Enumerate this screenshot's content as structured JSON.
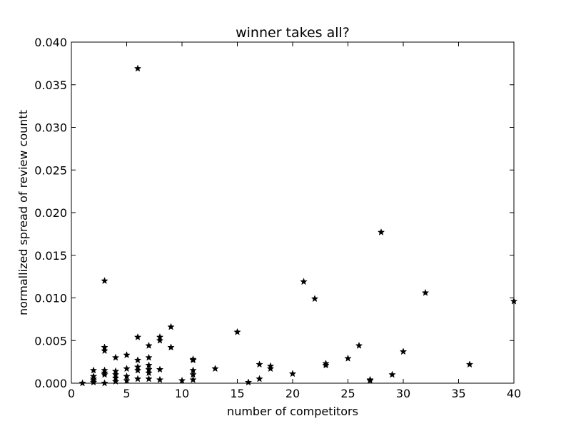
{
  "chart_data": {
    "type": "scatter",
    "title": "winner takes all?",
    "xlabel": "number of competitors",
    "ylabel": "normallized spread of review countt",
    "xlim": [
      0,
      40
    ],
    "ylim": [
      0,
      0.04
    ],
    "xticks": [
      "0",
      "5",
      "10",
      "15",
      "20",
      "25",
      "30",
      "35",
      "40"
    ],
    "yticks": [
      "0.000",
      "0.005",
      "0.010",
      "0.015",
      "0.020",
      "0.025",
      "0.030",
      "0.035",
      "0.040"
    ],
    "grid": false,
    "marker": "star",
    "marker_color": "#000000",
    "points": [
      {
        "x": 1,
        "y": 0.0
      },
      {
        "x": 2,
        "y": 0.0015
      },
      {
        "x": 2,
        "y": 0.0008
      },
      {
        "x": 2,
        "y": 0.0005
      },
      {
        "x": 2,
        "y": 0.0003
      },
      {
        "x": 2,
        "y": 0.0001
      },
      {
        "x": 3,
        "y": 0.012
      },
      {
        "x": 3,
        "y": 0.0042
      },
      {
        "x": 3,
        "y": 0.0038
      },
      {
        "x": 3,
        "y": 0.0015
      },
      {
        "x": 3,
        "y": 0.0012
      },
      {
        "x": 3,
        "y": 0.001
      },
      {
        "x": 3,
        "y": 0.0
      },
      {
        "x": 4,
        "y": 0.003
      },
      {
        "x": 4,
        "y": 0.0014
      },
      {
        "x": 4,
        "y": 0.001
      },
      {
        "x": 4,
        "y": 0.0006
      },
      {
        "x": 4,
        "y": 0.0002
      },
      {
        "x": 5,
        "y": 0.0033
      },
      {
        "x": 5,
        "y": 0.0017
      },
      {
        "x": 5,
        "y": 0.0008
      },
      {
        "x": 5,
        "y": 0.0003
      },
      {
        "x": 6,
        "y": 0.0369
      },
      {
        "x": 6,
        "y": 0.0054
      },
      {
        "x": 6,
        "y": 0.0027
      },
      {
        "x": 6,
        "y": 0.0019
      },
      {
        "x": 6,
        "y": 0.0015
      },
      {
        "x": 6,
        "y": 0.0005
      },
      {
        "x": 7,
        "y": 0.0044
      },
      {
        "x": 7,
        "y": 0.003
      },
      {
        "x": 7,
        "y": 0.0021
      },
      {
        "x": 7,
        "y": 0.0016
      },
      {
        "x": 7,
        "y": 0.0012
      },
      {
        "x": 7,
        "y": 0.0005
      },
      {
        "x": 8,
        "y": 0.0054
      },
      {
        "x": 8,
        "y": 0.005
      },
      {
        "x": 8,
        "y": 0.0016
      },
      {
        "x": 8,
        "y": 0.0004
      },
      {
        "x": 9,
        "y": 0.0066
      },
      {
        "x": 9,
        "y": 0.0042
      },
      {
        "x": 10,
        "y": 0.0003
      },
      {
        "x": 11,
        "y": 0.0028
      },
      {
        "x": 11,
        "y": 0.0027
      },
      {
        "x": 11,
        "y": 0.0015
      },
      {
        "x": 11,
        "y": 0.001
      },
      {
        "x": 11,
        "y": 0.0004
      },
      {
        "x": 13,
        "y": 0.0017
      },
      {
        "x": 15,
        "y": 0.006
      },
      {
        "x": 16,
        "y": 0.0001
      },
      {
        "x": 17,
        "y": 0.0022
      },
      {
        "x": 17,
        "y": 0.0005
      },
      {
        "x": 18,
        "y": 0.002
      },
      {
        "x": 18,
        "y": 0.0017
      },
      {
        "x": 20,
        "y": 0.0011
      },
      {
        "x": 21,
        "y": 0.0119
      },
      {
        "x": 22,
        "y": 0.0099
      },
      {
        "x": 23,
        "y": 0.0023
      },
      {
        "x": 23,
        "y": 0.0021
      },
      {
        "x": 25,
        "y": 0.0029
      },
      {
        "x": 26,
        "y": 0.0044
      },
      {
        "x": 27,
        "y": 0.0004
      },
      {
        "x": 27,
        "y": 0.0003
      },
      {
        "x": 28,
        "y": 0.0177
      },
      {
        "x": 29,
        "y": 0.001
      },
      {
        "x": 30,
        "y": 0.0037
      },
      {
        "x": 32,
        "y": 0.0106
      },
      {
        "x": 36,
        "y": 0.0022
      },
      {
        "x": 40,
        "y": 0.0096
      }
    ]
  }
}
